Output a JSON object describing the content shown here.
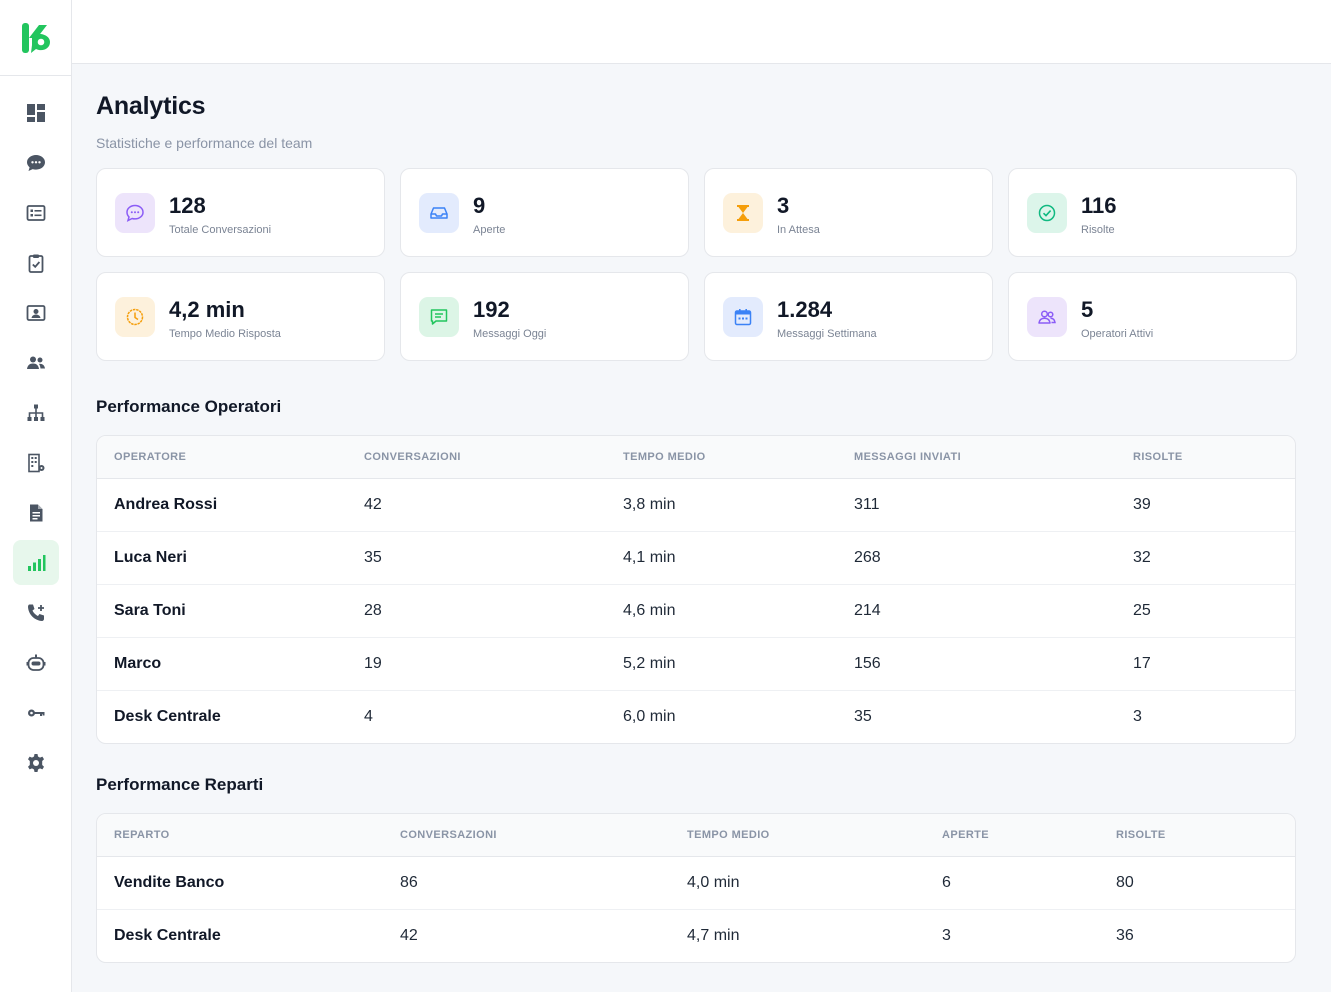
{
  "app": {
    "brand": "K",
    "nav": [
      {
        "icon": "dashboard-icon",
        "active": false
      },
      {
        "icon": "chat-icon",
        "active": false
      },
      {
        "icon": "ticket-list-icon",
        "active": false
      },
      {
        "icon": "clipboard-check-icon",
        "active": false
      },
      {
        "icon": "contact-card-icon",
        "active": false
      },
      {
        "icon": "users-icon",
        "active": false
      },
      {
        "icon": "org-chart-icon",
        "active": false
      },
      {
        "icon": "building-icon",
        "active": false
      },
      {
        "icon": "document-icon",
        "active": false
      },
      {
        "icon": "bar-chart-icon",
        "active": true
      },
      {
        "icon": "phone-add-icon",
        "active": false
      },
      {
        "icon": "robot-icon",
        "active": false
      },
      {
        "icon": "key-icon",
        "active": false
      },
      {
        "icon": "settings-icon",
        "active": false
      }
    ]
  },
  "page": {
    "title": "Analytics",
    "subtitle": "Statistiche e performance del team"
  },
  "stats": [
    {
      "value": "128",
      "label": "Totale Conversazioni",
      "icon": "chat-bubble-icon",
      "bg": "#ede4fb",
      "color": "#8b5cf6"
    },
    {
      "value": "9",
      "label": "Aperte",
      "icon": "inbox-icon",
      "bg": "#e3ebfd",
      "color": "#3b82f6"
    },
    {
      "value": "3",
      "label": "In Attesa",
      "icon": "hourglass-icon",
      "bg": "#fdf1dc",
      "color": "#f59e0b"
    },
    {
      "value": "116",
      "label": "Risolte",
      "icon": "check-circle-icon",
      "bg": "#dcf5ea",
      "color": "#10b981"
    },
    {
      "value": "4,2 min",
      "label": "Tempo Medio Risposta",
      "icon": "clock-icon",
      "bg": "#fdf1dc",
      "color": "#f59e0b"
    },
    {
      "value": "192",
      "label": "Messaggi Oggi",
      "icon": "message-lines-icon",
      "bg": "#dcf5e6",
      "color": "#22c55e"
    },
    {
      "value": "1.284",
      "label": "Messaggi Settimana",
      "icon": "calendar-icon",
      "bg": "#e3ebfd",
      "color": "#3b82f6"
    },
    {
      "value": "5",
      "label": "Operatori Attivi",
      "icon": "users-icon",
      "bg": "#ede4fb",
      "color": "#8b5cf6"
    }
  ],
  "operators": {
    "title": "Performance Operatori",
    "headers": [
      "OPERATORE",
      "CONVERSAZIONI",
      "TEMPO MEDIO",
      "MESSAGGI INVIATI",
      "RISOLTE"
    ],
    "rows": [
      [
        "Andrea Rossi",
        "42",
        "3,8 min",
        "311",
        "39"
      ],
      [
        "Luca Neri",
        "35",
        "4,1 min",
        "268",
        "32"
      ],
      [
        "Sara Toni",
        "28",
        "4,6 min",
        "214",
        "25"
      ],
      [
        "Marco",
        "19",
        "5,2 min",
        "156",
        "17"
      ],
      [
        "Desk Centrale",
        "4",
        "6,0 min",
        "35",
        "3"
      ]
    ]
  },
  "departments": {
    "title": "Performance Reparti",
    "headers": [
      "REPARTO",
      "CONVERSAZIONI",
      "TEMPO MEDIO",
      "APERTE",
      "RISOLTE"
    ],
    "rows": [
      [
        "Vendite Banco",
        "86",
        "4,0 min",
        "6",
        "80"
      ],
      [
        "Desk Centrale",
        "42",
        "4,7 min",
        "3",
        "36"
      ]
    ]
  }
}
